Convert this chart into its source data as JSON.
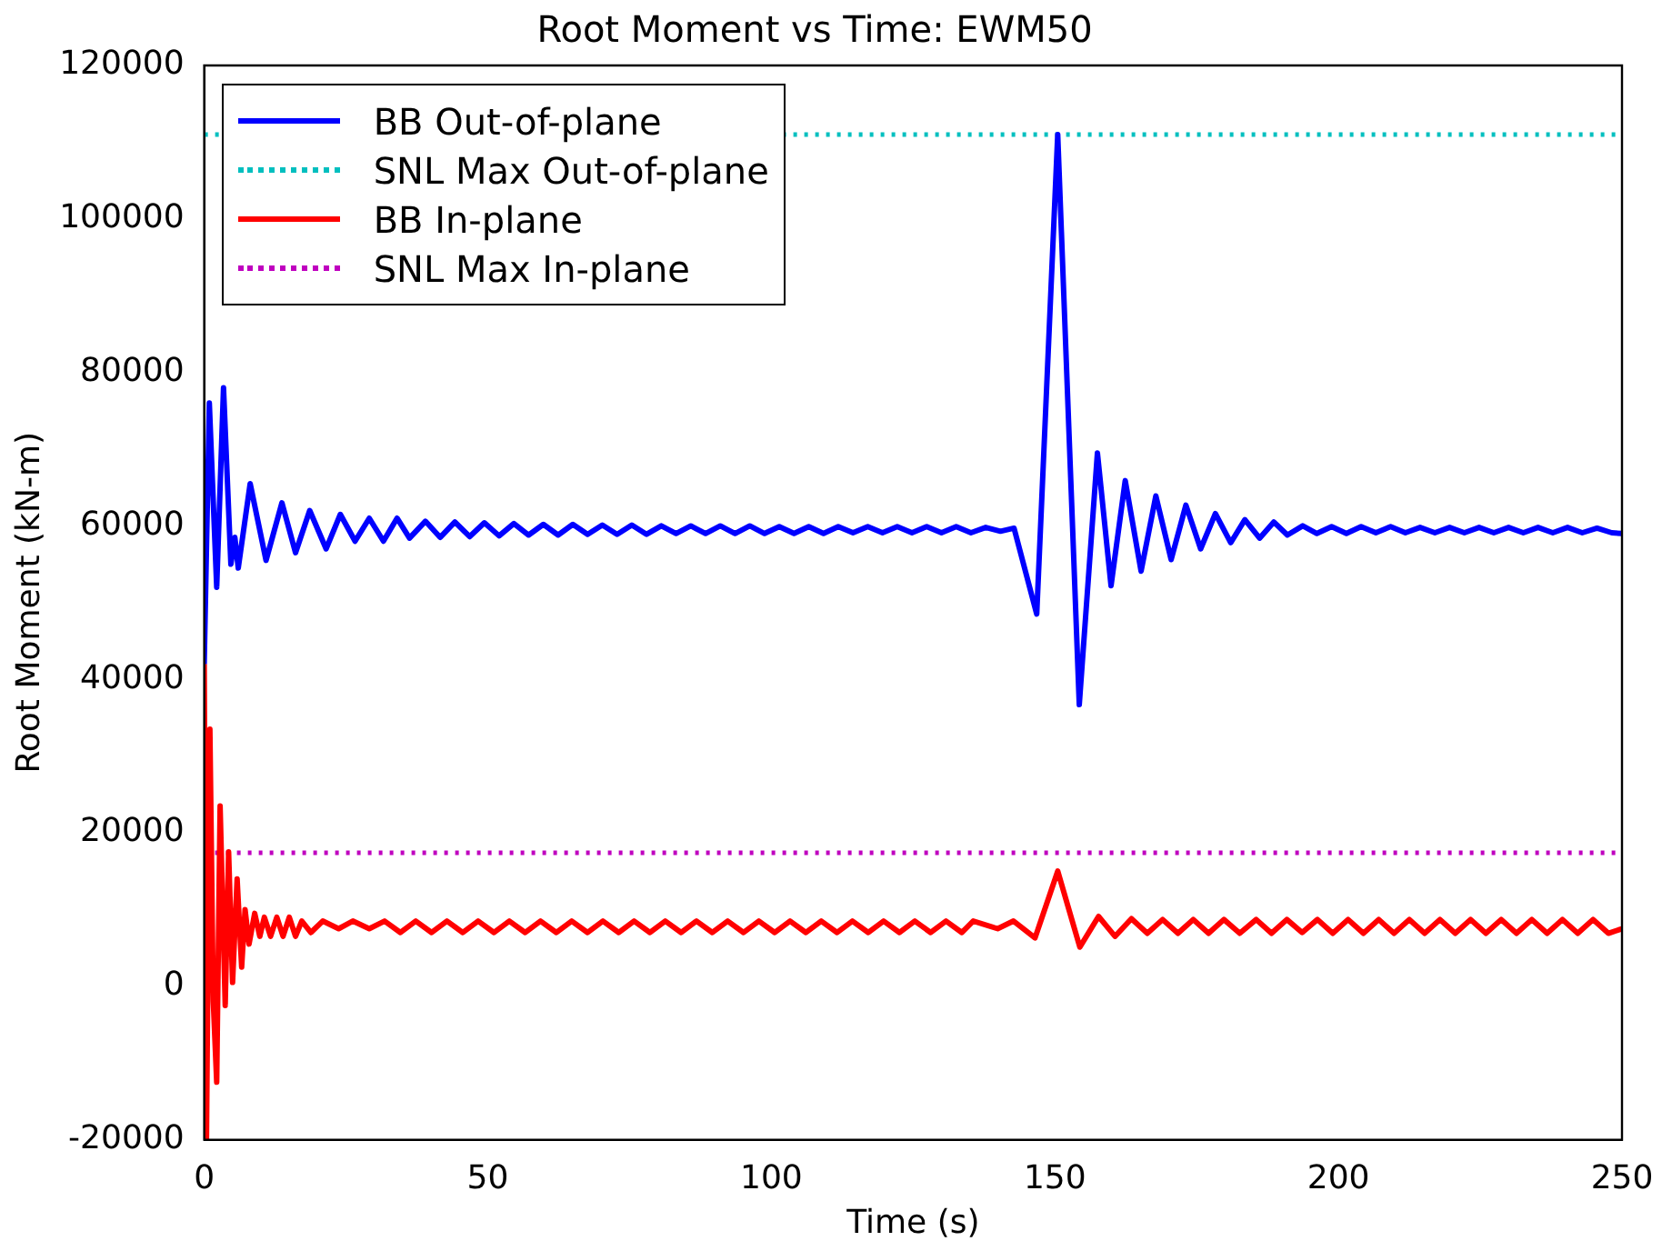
{
  "chart_data": {
    "type": "line",
    "title": "Root Moment vs Time: EWM50",
    "xlabel": "Time (s)",
    "ylabel": "Root Moment (kN-m)",
    "xlim": [
      0,
      250
    ],
    "xticks": [
      0,
      50,
      100,
      150,
      200,
      250
    ],
    "ylim": [
      -20000,
      120000
    ],
    "yticks": [
      -20000,
      0,
      20000,
      40000,
      60000,
      80000,
      100000,
      120000
    ],
    "grid": false,
    "legend": "top left",
    "marker": "none",
    "series": [
      {
        "name": "BB Out-of-plane",
        "color": "#0000ff",
        "line_style": "solid",
        "x": [
          0,
          0.9,
          2.2,
          3.4,
          4.7,
          5.4,
          6.0,
          8.1,
          10.9,
          13.7,
          16.1,
          18.6,
          21.5,
          24.0,
          26.6,
          29.1,
          31.6,
          34.0,
          36.2,
          39.0,
          41.6,
          44.2,
          46.8,
          49.4,
          52.0,
          54.6,
          57.2,
          59.8,
          62.4,
          65.0,
          67.6,
          70.2,
          72.8,
          75.4,
          78.0,
          80.6,
          83.2,
          85.8,
          88.4,
          91.0,
          93.6,
          96.2,
          98.8,
          101.4,
          104.0,
          106.6,
          109.2,
          111.8,
          114.4,
          117.0,
          119.6,
          122.2,
          124.8,
          127.4,
          130.0,
          132.6,
          135.2,
          137.8,
          140.4,
          142.8,
          146.8,
          150.5,
          154.3,
          157.5,
          159.9,
          162.4,
          165.2,
          167.8,
          170.5,
          173.1,
          175.7,
          178.3,
          181.0,
          183.5,
          186.1,
          188.6,
          191.0,
          193.7,
          196.2,
          198.8,
          201.4,
          204.0,
          206.6,
          209.2,
          211.8,
          214.4,
          217.0,
          219.6,
          222.2,
          224.8,
          227.4,
          230.0,
          232.6,
          235.2,
          237.8,
          240.4,
          243.0,
          245.6,
          248.2,
          250
        ],
        "values": [
          42000,
          76000,
          52000,
          78000,
          55000,
          58500,
          54500,
          65500,
          55500,
          63000,
          56500,
          62000,
          57000,
          61500,
          58000,
          61000,
          58000,
          61000,
          58400,
          60600,
          58500,
          60500,
          58600,
          60400,
          58700,
          60300,
          58800,
          60200,
          58800,
          60200,
          58900,
          60100,
          58900,
          60100,
          58900,
          60000,
          59000,
          60000,
          59000,
          60000,
          59000,
          60000,
          59000,
          59900,
          59000,
          59900,
          59000,
          59900,
          59100,
          59900,
          59100,
          59900,
          59100,
          59900,
          59100,
          59900,
          59100,
          59800,
          59300,
          59700,
          48500,
          111000,
          36700,
          69500,
          52200,
          65900,
          54100,
          63900,
          55600,
          62700,
          57000,
          61600,
          57800,
          60800,
          58400,
          60500,
          58800,
          60000,
          59000,
          59900,
          59000,
          59900,
          59100,
          59900,
          59100,
          59800,
          59100,
          59800,
          59100,
          59800,
          59100,
          59800,
          59100,
          59800,
          59100,
          59800,
          59100,
          59700,
          59100,
          59000
        ]
      },
      {
        "name": "SNL Max Out-of-plane",
        "color": "#00bfbf",
        "line_style": "dotted",
        "x": [
          0,
          250
        ],
        "values": [
          111000,
          111000
        ]
      },
      {
        "name": "BB In-plane",
        "color": "#ff0000",
        "line_style": "solid",
        "x": [
          0,
          0.4,
          1.0,
          1.6,
          2.2,
          2.8,
          3.7,
          4.3,
          5.0,
          5.8,
          6.6,
          7.2,
          7.9,
          8.9,
          9.8,
          10.6,
          11.7,
          12.8,
          13.9,
          15.0,
          16.1,
          17.2,
          18.8,
          20.9,
          23.7,
          26.2,
          29.1,
          31.8,
          34.6,
          37.3,
          40.1,
          42.8,
          45.6,
          48.3,
          51.1,
          53.8,
          56.6,
          59.3,
          62.1,
          64.8,
          67.6,
          70.3,
          73.1,
          75.8,
          78.6,
          81.3,
          84.1,
          86.8,
          89.6,
          92.3,
          95.1,
          97.8,
          100.6,
          103.3,
          106.1,
          108.8,
          111.6,
          114.3,
          117.1,
          119.8,
          122.6,
          125.3,
          128.1,
          130.8,
          133.6,
          135.6,
          139.9,
          142.7,
          146.5,
          150.5,
          154.4,
          157.7,
          160.6,
          163.5,
          166.3,
          169.0,
          171.7,
          174.4,
          177.1,
          179.8,
          182.6,
          185.5,
          188.2,
          190.9,
          193.6,
          196.3,
          199.0,
          201.7,
          204.4,
          207.1,
          209.8,
          212.5,
          215.2,
          217.9,
          220.6,
          223.3,
          226.0,
          228.7,
          231.4,
          234.1,
          236.8,
          239.5,
          242.2,
          244.9,
          247.6,
          250
        ],
        "values": [
          42000,
          -20000,
          33500,
          -2000,
          -12500,
          23500,
          -2500,
          17500,
          500,
          14000,
          2500,
          10000,
          5500,
          9500,
          6500,
          9000,
          6500,
          9000,
          6500,
          9000,
          6500,
          8500,
          7000,
          8500,
          7500,
          8500,
          7500,
          8500,
          7000,
          8500,
          7000,
          8500,
          7000,
          8500,
          7000,
          8500,
          7000,
          8500,
          7000,
          8500,
          7000,
          8500,
          7000,
          8500,
          7000,
          8500,
          7000,
          8500,
          7000,
          8500,
          7000,
          8500,
          7000,
          8500,
          7000,
          8500,
          7000,
          8500,
          7000,
          8500,
          7000,
          8500,
          7000,
          8500,
          7000,
          8500,
          7500,
          8500,
          6300,
          15000,
          5100,
          9100,
          6500,
          8800,
          6900,
          8700,
          6900,
          8700,
          6900,
          8700,
          6900,
          8700,
          6900,
          8700,
          7000,
          8700,
          6900,
          8700,
          6900,
          8700,
          6900,
          8700,
          6900,
          8700,
          6900,
          8700,
          6900,
          8700,
          6900,
          8700,
          6900,
          8700,
          6900,
          8700,
          6900,
          7500
        ]
      },
      {
        "name": "SNL Max In-plane",
        "color": "#bf00bf",
        "line_style": "dotted",
        "x": [
          0,
          250
        ],
        "values": [
          17400,
          17400
        ]
      }
    ]
  }
}
